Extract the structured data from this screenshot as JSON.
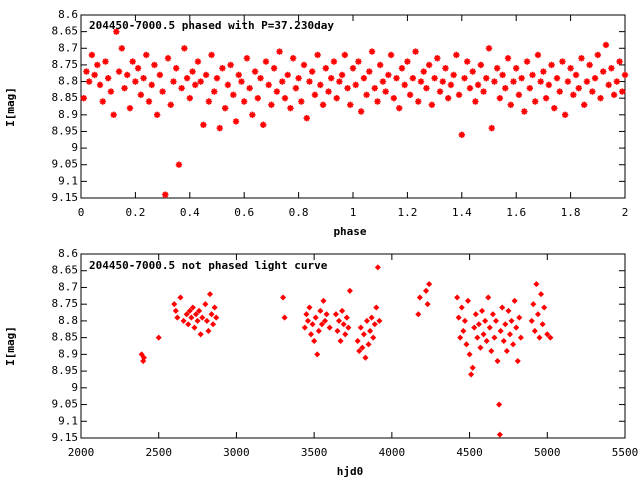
{
  "chart_data": [
    {
      "type": "scatter",
      "title": "204450-7000.5 phased with P=37.230day",
      "xlabel": "phase",
      "ylabel": "I[mag]",
      "xlim": [
        0,
        2
      ],
      "ylim": [
        8.6,
        9.15
      ],
      "y_inverted": true,
      "x_ticks": [
        0,
        0.2,
        0.4,
        0.6,
        0.8,
        1,
        1.2,
        1.4,
        1.6,
        1.8,
        2
      ],
      "x_tick_labels": [
        "0",
        "0.2",
        "0.4",
        "0.6",
        "0.8",
        "1",
        "1.2",
        "1.4",
        "1.6",
        "1.8",
        "2"
      ],
      "y_ticks": [
        8.6,
        8.65,
        8.7,
        8.75,
        8.8,
        8.85,
        8.9,
        8.95,
        9,
        9.05,
        9.1,
        9.15
      ],
      "y_tick_labels": [
        "8.6",
        "8.65",
        "8.7",
        "8.75",
        "8.8",
        "8.85",
        "8.9",
        "8.95",
        "9",
        "9.05",
        "9.1",
        "9.15"
      ],
      "grid": false,
      "marker": "star",
      "color": "#ff0000",
      "points": [
        [
          0.01,
          8.85
        ],
        [
          0.02,
          8.77
        ],
        [
          0.03,
          8.8
        ],
        [
          0.04,
          8.72
        ],
        [
          0.05,
          8.78
        ],
        [
          0.06,
          8.75
        ],
        [
          0.07,
          8.81
        ],
        [
          0.08,
          8.86
        ],
        [
          0.09,
          8.74
        ],
        [
          0.1,
          8.79
        ],
        [
          0.11,
          8.83
        ],
        [
          0.12,
          8.9
        ],
        [
          0.13,
          8.65
        ],
        [
          0.14,
          8.77
        ],
        [
          0.15,
          8.7
        ],
        [
          0.16,
          8.82
        ],
        [
          0.17,
          8.78
        ],
        [
          0.18,
          8.88
        ],
        [
          0.19,
          8.74
        ],
        [
          0.2,
          8.8
        ],
        [
          0.21,
          8.76
        ],
        [
          0.22,
          8.84
        ],
        [
          0.23,
          8.79
        ],
        [
          0.24,
          8.72
        ],
        [
          0.25,
          8.86
        ],
        [
          0.26,
          8.81
        ],
        [
          0.27,
          8.75
        ],
        [
          0.28,
          8.9
        ],
        [
          0.29,
          8.78
        ],
        [
          0.3,
          8.83
        ],
        [
          0.31,
          9.14
        ],
        [
          0.32,
          8.73
        ],
        [
          0.33,
          8.87
        ],
        [
          0.34,
          8.8
        ],
        [
          0.35,
          8.76
        ],
        [
          0.36,
          9.05
        ],
        [
          0.37,
          8.82
        ],
        [
          0.38,
          8.7
        ],
        [
          0.39,
          8.79
        ],
        [
          0.4,
          8.85
        ],
        [
          0.41,
          8.77
        ],
        [
          0.42,
          8.81
        ],
        [
          0.43,
          8.74
        ],
        [
          0.44,
          8.8
        ],
        [
          0.45,
          8.93
        ],
        [
          0.46,
          8.78
        ],
        [
          0.47,
          8.86
        ],
        [
          0.48,
          8.72
        ],
        [
          0.49,
          8.83
        ],
        [
          0.5,
          8.79
        ],
        [
          0.51,
          8.94
        ],
        [
          0.52,
          8.76
        ],
        [
          0.53,
          8.88
        ],
        [
          0.54,
          8.81
        ],
        [
          0.55,
          8.75
        ],
        [
          0.56,
          8.84
        ],
        [
          0.57,
          8.92
        ],
        [
          0.58,
          8.78
        ],
        [
          0.59,
          8.8
        ],
        [
          0.6,
          8.86
        ],
        [
          0.61,
          8.73
        ],
        [
          0.62,
          8.82
        ],
        [
          0.63,
          8.9
        ],
        [
          0.64,
          8.77
        ],
        [
          0.65,
          8.85
        ],
        [
          0.66,
          8.79
        ],
        [
          0.67,
          8.93
        ],
        [
          0.68,
          8.74
        ],
        [
          0.69,
          8.81
        ],
        [
          0.7,
          8.87
        ],
        [
          0.71,
          8.76
        ],
        [
          0.72,
          8.83
        ],
        [
          0.73,
          8.71
        ],
        [
          0.74,
          8.8
        ],
        [
          0.75,
          8.85
        ],
        [
          0.76,
          8.78
        ],
        [
          0.77,
          8.88
        ],
        [
          0.78,
          8.73
        ],
        [
          0.79,
          8.82
        ],
        [
          0.8,
          8.79
        ],
        [
          0.81,
          8.86
        ],
        [
          0.82,
          8.75
        ],
        [
          0.83,
          8.91
        ],
        [
          0.84,
          8.8
        ],
        [
          0.85,
          8.77
        ],
        [
          0.86,
          8.84
        ],
        [
          0.87,
          8.72
        ],
        [
          0.88,
          8.81
        ],
        [
          0.89,
          8.87
        ],
        [
          0.9,
          8.76
        ],
        [
          0.91,
          8.83
        ],
        [
          0.92,
          8.79
        ],
        [
          0.93,
          8.74
        ],
        [
          0.94,
          8.85
        ],
        [
          0.95,
          8.8
        ],
        [
          0.96,
          8.78
        ],
        [
          0.97,
          8.72
        ],
        [
          0.98,
          8.82
        ],
        [
          0.99,
          8.87
        ],
        [
          1.0,
          8.76
        ],
        [
          1.01,
          8.81
        ],
        [
          1.02,
          8.74
        ],
        [
          1.03,
          8.89
        ],
        [
          1.04,
          8.79
        ],
        [
          1.05,
          8.84
        ],
        [
          1.06,
          8.77
        ],
        [
          1.07,
          8.71
        ],
        [
          1.08,
          8.82
        ],
        [
          1.09,
          8.86
        ],
        [
          1.1,
          8.75
        ],
        [
          1.11,
          8.8
        ],
        [
          1.12,
          8.83
        ],
        [
          1.13,
          8.78
        ],
        [
          1.14,
          8.72
        ],
        [
          1.15,
          8.85
        ],
        [
          1.16,
          8.79
        ],
        [
          1.17,
          8.88
        ],
        [
          1.18,
          8.76
        ],
        [
          1.19,
          8.81
        ],
        [
          1.2,
          8.74
        ],
        [
          1.21,
          8.84
        ],
        [
          1.22,
          8.79
        ],
        [
          1.23,
          8.71
        ],
        [
          1.24,
          8.86
        ],
        [
          1.25,
          8.8
        ],
        [
          1.26,
          8.77
        ],
        [
          1.27,
          8.82
        ],
        [
          1.28,
          8.75
        ],
        [
          1.29,
          8.87
        ],
        [
          1.3,
          8.79
        ],
        [
          1.31,
          8.73
        ],
        [
          1.32,
          8.83
        ],
        [
          1.33,
          8.8
        ],
        [
          1.34,
          8.76
        ],
        [
          1.35,
          8.85
        ],
        [
          1.36,
          8.81
        ],
        [
          1.37,
          8.78
        ],
        [
          1.38,
          8.72
        ],
        [
          1.39,
          8.84
        ],
        [
          1.4,
          8.96
        ],
        [
          1.41,
          8.79
        ],
        [
          1.42,
          8.74
        ],
        [
          1.43,
          8.82
        ],
        [
          1.44,
          8.77
        ],
        [
          1.45,
          8.86
        ],
        [
          1.46,
          8.81
        ],
        [
          1.47,
          8.75
        ],
        [
          1.48,
          8.83
        ],
        [
          1.49,
          8.79
        ],
        [
          1.5,
          8.7
        ],
        [
          1.51,
          8.94
        ],
        [
          1.52,
          8.8
        ],
        [
          1.53,
          8.76
        ],
        [
          1.54,
          8.85
        ],
        [
          1.55,
          8.78
        ],
        [
          1.56,
          8.82
        ],
        [
          1.57,
          8.73
        ],
        [
          1.58,
          8.87
        ],
        [
          1.59,
          8.8
        ],
        [
          1.6,
          8.76
        ],
        [
          1.61,
          8.84
        ],
        [
          1.62,
          8.79
        ],
        [
          1.63,
          8.89
        ],
        [
          1.64,
          8.74
        ],
        [
          1.65,
          8.82
        ],
        [
          1.66,
          8.78
        ],
        [
          1.67,
          8.86
        ],
        [
          1.68,
          8.72
        ],
        [
          1.69,
          8.8
        ],
        [
          1.7,
          8.77
        ],
        [
          1.71,
          8.85
        ],
        [
          1.72,
          8.81
        ],
        [
          1.73,
          8.75
        ],
        [
          1.74,
          8.88
        ],
        [
          1.75,
          8.79
        ],
        [
          1.76,
          8.83
        ],
        [
          1.77,
          8.74
        ],
        [
          1.78,
          8.9
        ],
        [
          1.79,
          8.8
        ],
        [
          1.8,
          8.76
        ],
        [
          1.81,
          8.84
        ],
        [
          1.82,
          8.78
        ],
        [
          1.83,
          8.82
        ],
        [
          1.84,
          8.73
        ],
        [
          1.85,
          8.87
        ],
        [
          1.86,
          8.8
        ],
        [
          1.87,
          8.75
        ],
        [
          1.88,
          8.83
        ],
        [
          1.89,
          8.79
        ],
        [
          1.9,
          8.72
        ],
        [
          1.91,
          8.85
        ],
        [
          1.92,
          8.77
        ],
        [
          1.93,
          8.69
        ],
        [
          1.94,
          8.81
        ],
        [
          1.95,
          8.76
        ],
        [
          1.96,
          8.84
        ],
        [
          1.97,
          8.8
        ],
        [
          1.98,
          8.74
        ],
        [
          1.99,
          8.83
        ],
        [
          2.0,
          8.78
        ]
      ]
    },
    {
      "type": "scatter",
      "title": "204450-7000.5 not phased light curve",
      "xlabel": "hjd0",
      "ylabel": "I[mag]",
      "xlim": [
        2000,
        5500
      ],
      "ylim": [
        8.6,
        9.15
      ],
      "y_inverted": true,
      "x_ticks": [
        2000,
        2500,
        3000,
        3500,
        4000,
        4500,
        5000,
        5500
      ],
      "x_tick_labels": [
        "2000",
        "2500",
        "3000",
        "3500",
        "4000",
        "4500",
        "5000",
        "5500"
      ],
      "y_ticks": [
        8.6,
        8.65,
        8.7,
        8.75,
        8.8,
        8.85,
        8.9,
        8.95,
        9,
        9.05,
        9.1,
        9.15
      ],
      "y_tick_labels": [
        "8.6",
        "8.65",
        "8.7",
        "8.75",
        "8.8",
        "8.85",
        "8.9",
        "8.95",
        "9",
        "9.05",
        "9.1",
        "9.15"
      ],
      "grid": false,
      "marker": "diamond",
      "color": "#ff0000",
      "points": [
        [
          2390,
          8.9
        ],
        [
          2400,
          8.92
        ],
        [
          2405,
          8.91
        ],
        [
          2500,
          8.85
        ],
        [
          2600,
          8.75
        ],
        [
          2610,
          8.77
        ],
        [
          2620,
          8.79
        ],
        [
          2640,
          8.73
        ],
        [
          2660,
          8.8
        ],
        [
          2680,
          8.78
        ],
        [
          2690,
          8.81
        ],
        [
          2700,
          8.77
        ],
        [
          2710,
          8.79
        ],
        [
          2720,
          8.76
        ],
        [
          2730,
          8.82
        ],
        [
          2740,
          8.78
        ],
        [
          2750,
          8.8
        ],
        [
          2760,
          8.77
        ],
        [
          2770,
          8.84
        ],
        [
          2780,
          8.79
        ],
        [
          2800,
          8.75
        ],
        [
          2810,
          8.8
        ],
        [
          2820,
          8.83
        ],
        [
          2830,
          8.72
        ],
        [
          2840,
          8.78
        ],
        [
          2850,
          8.81
        ],
        [
          2860,
          8.76
        ],
        [
          2870,
          8.79
        ],
        [
          3300,
          8.73
        ],
        [
          3310,
          8.79
        ],
        [
          3440,
          8.82
        ],
        [
          3450,
          8.78
        ],
        [
          3460,
          8.8
        ],
        [
          3470,
          8.76
        ],
        [
          3480,
          8.84
        ],
        [
          3490,
          8.81
        ],
        [
          3500,
          8.86
        ],
        [
          3510,
          8.79
        ],
        [
          3520,
          8.9
        ],
        [
          3530,
          8.83
        ],
        [
          3540,
          8.77
        ],
        [
          3550,
          8.81
        ],
        [
          3560,
          8.74
        ],
        [
          3570,
          8.8
        ],
        [
          3580,
          8.78
        ],
        [
          3600,
          8.82
        ],
        [
          3640,
          8.78
        ],
        [
          3650,
          8.83
        ],
        [
          3660,
          8.8
        ],
        [
          3670,
          8.86
        ],
        [
          3680,
          8.77
        ],
        [
          3690,
          8.81
        ],
        [
          3700,
          8.84
        ],
        [
          3710,
          8.79
        ],
        [
          3720,
          8.82
        ],
        [
          3730,
          8.71
        ],
        [
          3780,
          8.86
        ],
        [
          3790,
          8.89
        ],
        [
          3800,
          8.82
        ],
        [
          3810,
          8.88
        ],
        [
          3820,
          8.84
        ],
        [
          3830,
          8.91
        ],
        [
          3840,
          8.8
        ],
        [
          3850,
          8.87
        ],
        [
          3860,
          8.83
        ],
        [
          3870,
          8.79
        ],
        [
          3880,
          8.85
        ],
        [
          3890,
          8.81
        ],
        [
          3900,
          8.76
        ],
        [
          3910,
          8.64
        ],
        [
          3920,
          8.8
        ],
        [
          4170,
          8.78
        ],
        [
          4180,
          8.73
        ],
        [
          4220,
          8.71
        ],
        [
          4230,
          8.75
        ],
        [
          4240,
          8.69
        ],
        [
          4420,
          8.73
        ],
        [
          4430,
          8.79
        ],
        [
          4440,
          8.85
        ],
        [
          4450,
          8.76
        ],
        [
          4460,
          8.83
        ],
        [
          4470,
          8.8
        ],
        [
          4480,
          8.87
        ],
        [
          4490,
          8.74
        ],
        [
          4500,
          8.9
        ],
        [
          4510,
          8.96
        ],
        [
          4520,
          8.94
        ],
        [
          4530,
          8.82
        ],
        [
          4540,
          8.78
        ],
        [
          4550,
          8.85
        ],
        [
          4560,
          8.81
        ],
        [
          4570,
          8.88
        ],
        [
          4580,
          8.77
        ],
        [
          4590,
          8.84
        ],
        [
          4600,
          8.8
        ],
        [
          4610,
          8.86
        ],
        [
          4620,
          8.73
        ],
        [
          4630,
          8.82
        ],
        [
          4640,
          8.89
        ],
        [
          4650,
          8.78
        ],
        [
          4660,
          8.85
        ],
        [
          4670,
          8.8
        ],
        [
          4680,
          8.92
        ],
        [
          4690,
          9.05
        ],
        [
          4695,
          9.14
        ],
        [
          4700,
          8.83
        ],
        [
          4710,
          8.76
        ],
        [
          4720,
          8.86
        ],
        [
          4730,
          8.81
        ],
        [
          4740,
          8.89
        ],
        [
          4750,
          8.77
        ],
        [
          4760,
          8.84
        ],
        [
          4770,
          8.8
        ],
        [
          4780,
          8.87
        ],
        [
          4790,
          8.74
        ],
        [
          4800,
          8.82
        ],
        [
          4810,
          8.92
        ],
        [
          4820,
          8.79
        ],
        [
          4830,
          8.85
        ],
        [
          4900,
          8.8
        ],
        [
          4910,
          8.75
        ],
        [
          4920,
          8.83
        ],
        [
          4930,
          8.69
        ],
        [
          4940,
          8.78
        ],
        [
          4950,
          8.85
        ],
        [
          4960,
          8.72
        ],
        [
          4970,
          8.81
        ],
        [
          4980,
          8.76
        ],
        [
          5000,
          8.84
        ],
        [
          5020,
          8.85
        ]
      ]
    }
  ]
}
